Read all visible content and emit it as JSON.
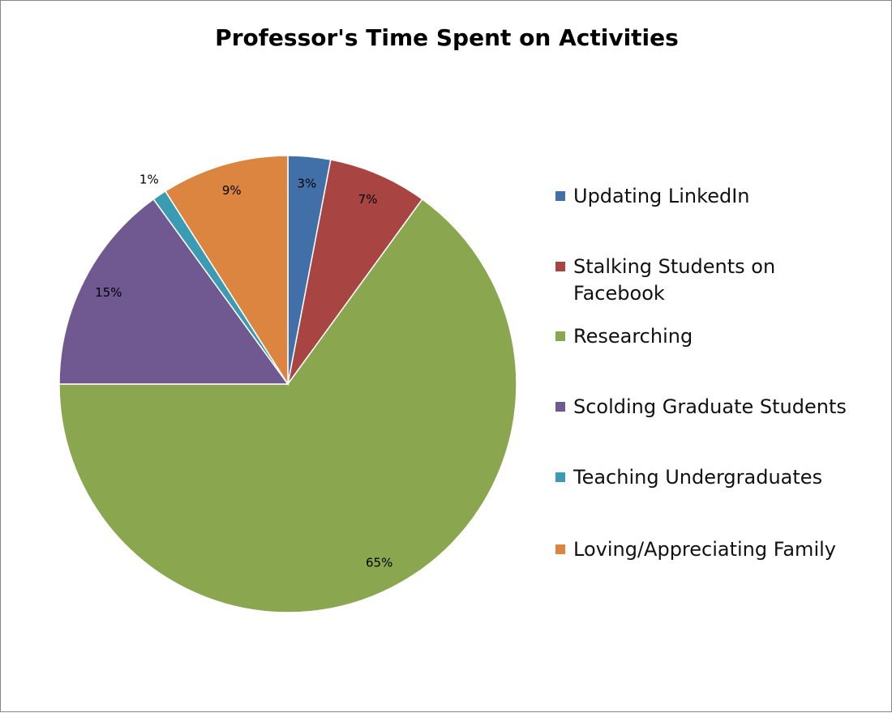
{
  "chart_data": {
    "type": "pie",
    "title": "Professor's Time Spent on Activities",
    "categories": [
      "Updating LinkedIn",
      "Stalking Students on Facebook",
      "Researching",
      "Scolding Graduate Students",
      "Teaching Undergraduates",
      "Loving/Appreciating Family"
    ],
    "values": [
      3,
      7,
      65,
      15,
      1,
      9
    ],
    "value_labels": [
      "3%",
      "7%",
      "65%",
      "15%",
      "1%",
      "9%"
    ],
    "colors": [
      "#4170a8",
      "#a84442",
      "#8aa64e",
      "#705890",
      "#3a9bb3",
      "#db8540"
    ],
    "legend": "right"
  }
}
